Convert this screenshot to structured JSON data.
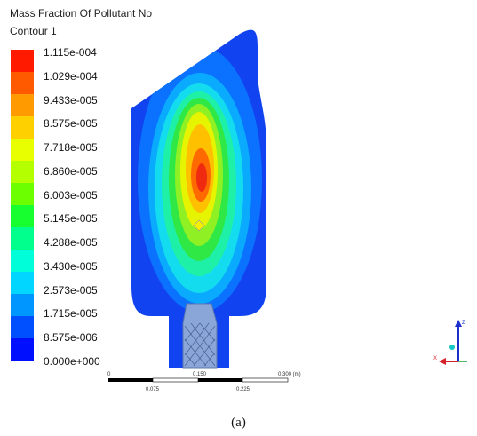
{
  "title": "Mass Fraction Of Pollutant No",
  "subtitle": "Contour 1",
  "legend": {
    "labels": [
      "1.115e-004",
      "1.029e-004",
      "9.433e-005",
      "8.575e-005",
      "7.718e-005",
      "6.860e-005",
      "6.003e-005",
      "5.145e-005",
      "4.288e-005",
      "3.430e-005",
      "2.573e-005",
      "1.715e-005",
      "8.575e-006",
      "0.000e+000"
    ],
    "colors": [
      "#ff1a00",
      "#ff5a00",
      "#ff9a00",
      "#ffd000",
      "#e8ff00",
      "#b4ff00",
      "#6cff00",
      "#18ff30",
      "#00ff8c",
      "#00ffd8",
      "#00d6ff",
      "#0096ff",
      "#0050ff",
      "#0010ff"
    ]
  },
  "scale": {
    "top_labels": [
      "0",
      "0.150",
      "0.300 (m)"
    ],
    "bottom_labels": [
      "0.075",
      "0.225"
    ]
  },
  "axes": {
    "z": "Z",
    "x": "X"
  },
  "caption": "(a)"
}
